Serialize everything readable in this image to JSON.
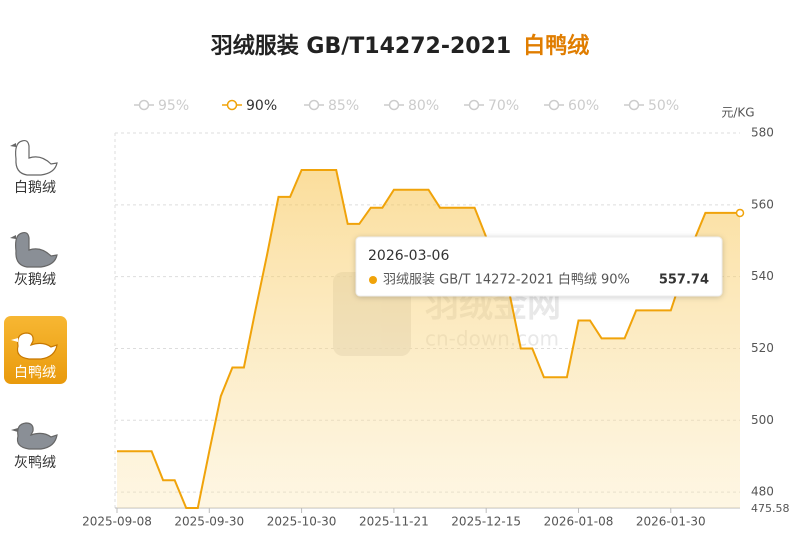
{
  "title": "羽绒服装 GB/T14272-2021",
  "title_highlight": "白鸭绒",
  "sidebar": {
    "items": [
      "白鹅绒",
      "灰鹅绒",
      "白鸭绒",
      "灰鸭绒"
    ],
    "active": 2
  },
  "watermark": {
    "name": "羽绒金网",
    "site": "cn-down.com"
  },
  "tooltip": {
    "series_label": "羽绒服装 GB/T 14272-2021 白鸭绒 90%"
  },
  "chart_data": {
    "type": "line",
    "unit": "元/KG",
    "legend": {
      "items": [
        "95%",
        "90%",
        "85%",
        "80%",
        "70%",
        "60%",
        "50%"
      ],
      "active": 1
    },
    "x": [
      "2025-09-08",
      null,
      null,
      null,
      null,
      null,
      null,
      null,
      "2025-09-30",
      null,
      null,
      null,
      null,
      null,
      null,
      null,
      "2025-10-30",
      null,
      null,
      null,
      null,
      null,
      null,
      null,
      "2025-11-21",
      null,
      null,
      null,
      null,
      null,
      null,
      null,
      "2025-12-15",
      null,
      null,
      null,
      null,
      null,
      null,
      null,
      "2026-01-08",
      null,
      null,
      null,
      null,
      null,
      null,
      null,
      "2026-01-30",
      null,
      null,
      null,
      null,
      null,
      "2026-03-06"
    ],
    "series": [
      {
        "color": "#f0a30a",
        "values": [
          491.4,
          491.4,
          491.4,
          491.4,
          483.3,
          483.3,
          475.58,
          475.58,
          491.4,
          506.7,
          514.7,
          514.7,
          530.6,
          546,
          562.2,
          562.2,
          569.7,
          569.7,
          569.7,
          569.7,
          554.7,
          554.7,
          559.2,
          559.2,
          564.2,
          564.2,
          564.2,
          564.2,
          559.2,
          559.2,
          559.2,
          559.2,
          551,
          535.6,
          535.6,
          520,
          520,
          512,
          512,
          512,
          527.8,
          527.8,
          522.8,
          522.8,
          522.8,
          530.6,
          530.6,
          530.6,
          530.6,
          540.3,
          550,
          557.74,
          557.74,
          557.74,
          557.74
        ]
      }
    ],
    "ylim": [
      475.58,
      580
    ],
    "yticks": [
      480,
      500,
      520,
      540,
      560,
      580
    ],
    "grid": true
  }
}
